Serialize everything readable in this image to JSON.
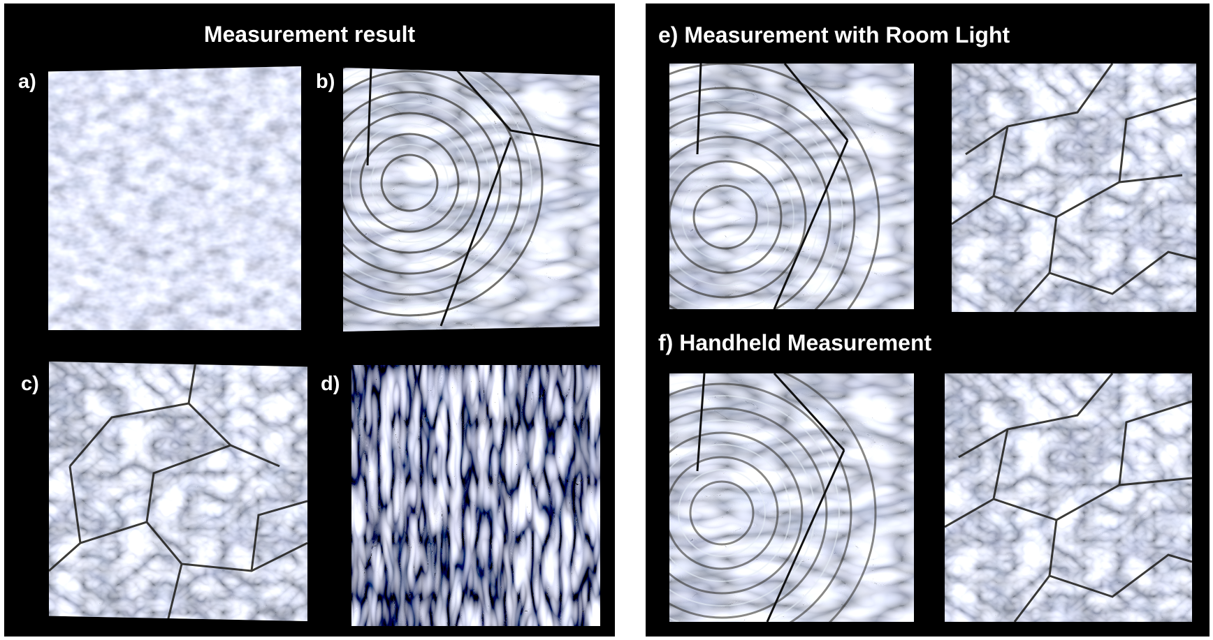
{
  "figure": {
    "left_panel": {
      "title": "Measurement result",
      "labels": {
        "a": "a)",
        "b": "b)",
        "c": "c)",
        "d": "d)"
      }
    },
    "right_panel": {
      "heading_e": "e) Measurement with Room Light",
      "heading_f": "f) Handheld Measurement"
    }
  },
  "colors": {
    "panel_background": "#000000",
    "page_background": "#ffffff",
    "text": "#ffffff",
    "surface_light": "#c9d6e6",
    "surface_mid": "#8f8c80",
    "surface_dark": "#3d3b33"
  },
  "image_descriptions": {
    "a": "fine mottled glass surface texture",
    "b": "concentric ripple texture with straight crack lines",
    "c": "cellular cracked glass texture",
    "d": "dense wavy dark texture",
    "e_left": "concentric ripple texture",
    "e_right": "cellular cracked texture",
    "f_left": "concentric ripple texture",
    "f_right": "cellular cracked texture"
  }
}
